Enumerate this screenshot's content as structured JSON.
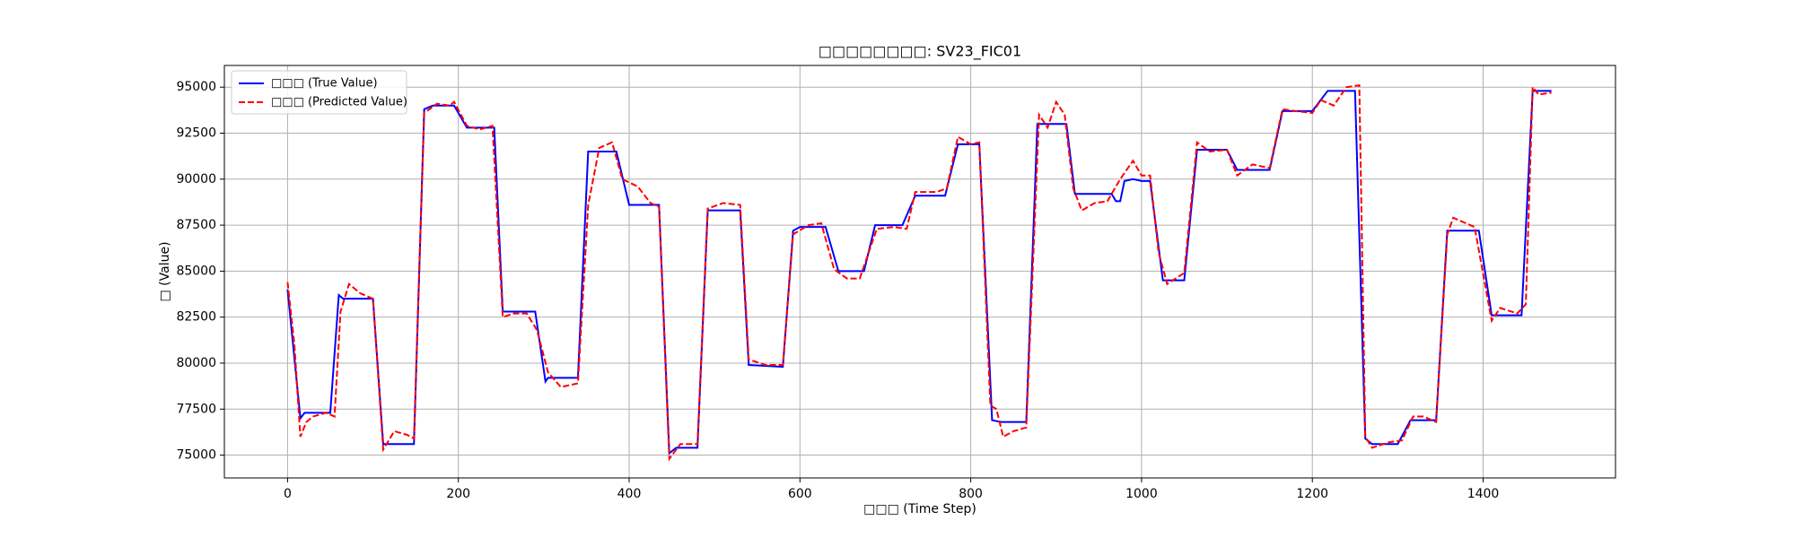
{
  "chart_data": {
    "type": "line",
    "title": "□□□□□□□□: SV23_FIC01",
    "xlabel": "□□□ (Time Step)",
    "ylabel": "□ (Value)",
    "xlim": [
      -74,
      1555
    ],
    "ylim": [
      73760,
      96180
    ],
    "xticks": [
      0,
      200,
      400,
      600,
      800,
      1000,
      1200,
      1400
    ],
    "yticks": [
      75000,
      77500,
      80000,
      82500,
      85000,
      87500,
      90000,
      92500,
      95000
    ],
    "grid": true,
    "legend": "upper left",
    "series": [
      {
        "name": "□□□ (True Value)",
        "color": "#0000ff",
        "dash": "solid",
        "x": [
          0,
          15,
          20,
          50,
          60,
          65,
          100,
          112,
          148,
          160,
          170,
          195,
          210,
          242,
          252,
          290,
          302,
          305,
          340,
          352,
          360,
          385,
          400,
          435,
          447,
          455,
          480,
          492,
          530,
          540,
          580,
          592,
          600,
          630,
          645,
          675,
          688,
          720,
          735,
          770,
          785,
          810,
          825,
          835,
          865,
          878,
          912,
          922,
          965,
          970,
          975,
          980,
          990,
          1000,
          1010,
          1025,
          1050,
          1065,
          1100,
          1112,
          1150,
          1165,
          1200,
          1218,
          1250,
          1262,
          1270,
          1300,
          1315,
          1345,
          1358,
          1368,
          1395,
          1410,
          1445,
          1458,
          1480
        ],
        "values": [
          84000,
          77000,
          77300,
          77300,
          83700,
          83500,
          83500,
          75600,
          75600,
          93800,
          94000,
          94000,
          92800,
          92800,
          82800,
          82800,
          79000,
          79200,
          79200,
          91500,
          91500,
          91500,
          88600,
          88600,
          75100,
          75400,
          75400,
          88300,
          88300,
          79900,
          79800,
          87200,
          87400,
          87400,
          85000,
          85000,
          87500,
          87500,
          89100,
          89100,
          91900,
          91900,
          76900,
          76800,
          76800,
          93000,
          93000,
          89200,
          89200,
          88800,
          88800,
          89900,
          90000,
          89900,
          89900,
          84500,
          84500,
          91600,
          91600,
          90500,
          90500,
          93700,
          93700,
          94800,
          94800,
          75900,
          75600,
          75600,
          76900,
          76900,
          87200,
          87200,
          87200,
          82600,
          82600,
          94800,
          94800
        ]
      },
      {
        "name": "□□□ (Predicted Value)",
        "color": "#ff0000",
        "dash": "dashed",
        "x": [
          0,
          8,
          15,
          22,
          30,
          45,
          55,
          62,
          72,
          85,
          100,
          112,
          125,
          140,
          148,
          160,
          175,
          190,
          195,
          210,
          225,
          240,
          252,
          265,
          280,
          292,
          305,
          320,
          340,
          352,
          365,
          380,
          392,
          410,
          425,
          435,
          447,
          460,
          480,
          492,
          510,
          530,
          540,
          560,
          580,
          592,
          610,
          625,
          640,
          655,
          670,
          690,
          710,
          725,
          735,
          760,
          772,
          785,
          800,
          810,
          823,
          830,
          838,
          850,
          865,
          880,
          890,
          900,
          910,
          920,
          930,
          945,
          960,
          975,
          990,
          1000,
          1010,
          1020,
          1030,
          1050,
          1065,
          1080,
          1100,
          1112,
          1130,
          1150,
          1165,
          1180,
          1200,
          1210,
          1225,
          1240,
          1255,
          1262,
          1270,
          1290,
          1305,
          1318,
          1330,
          1345,
          1358,
          1365,
          1380,
          1390,
          1410,
          1420,
          1440,
          1450,
          1458,
          1465,
          1480
        ],
        "values": [
          84400,
          81000,
          76000,
          76800,
          77100,
          77300,
          77100,
          82800,
          84300,
          83800,
          83500,
          75300,
          76300,
          76100,
          75900,
          93600,
          94100,
          94000,
          94200,
          92900,
          92700,
          92900,
          82500,
          82700,
          82700,
          81800,
          79500,
          78700,
          78900,
          88600,
          91700,
          92000,
          90000,
          89600,
          88700,
          88500,
          74800,
          75600,
          75600,
          88400,
          88700,
          88600,
          80200,
          79900,
          79900,
          87000,
          87500,
          87600,
          85100,
          84600,
          84600,
          87300,
          87400,
          87300,
          89300,
          89300,
          89500,
          92300,
          91900,
          92000,
          77700,
          77500,
          76000,
          76300,
          76500,
          93500,
          92800,
          94200,
          93500,
          89500,
          88300,
          88700,
          88800,
          90000,
          91000,
          90200,
          90200,
          86000,
          84300,
          84900,
          92000,
          91500,
          91600,
          90200,
          90800,
          90600,
          93800,
          93700,
          93600,
          94300,
          94000,
          95000,
          95100,
          76000,
          75400,
          75700,
          75800,
          77100,
          77100,
          76800,
          87000,
          87900,
          87600,
          87400,
          82300,
          83000,
          82700,
          83200,
          95000,
          94600,
          94700
        ]
      }
    ]
  }
}
